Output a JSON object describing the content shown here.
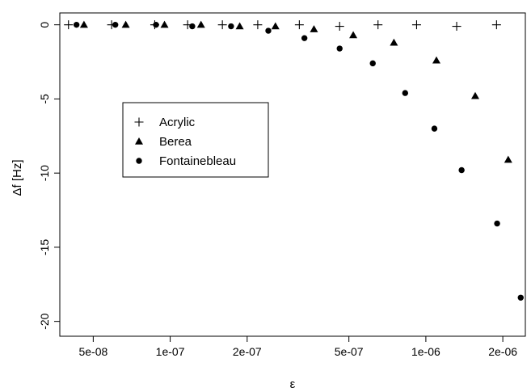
{
  "chart_data": {
    "type": "scatter",
    "title": "",
    "xlabel": "ε",
    "ylabel": "Δf [Hz]",
    "x_scale": "log",
    "xlim": [
      3.7e-08,
      2.45e-06
    ],
    "ylim": [
      -21,
      0.8
    ],
    "x_ticks": [
      {
        "value": 5e-08,
        "label": "5e-08"
      },
      {
        "value": 1e-07,
        "label": "1e-07"
      },
      {
        "value": 2e-07,
        "label": "2e-07"
      },
      {
        "value": 5e-07,
        "label": "5e-07"
      },
      {
        "value": 1e-06,
        "label": "1e-06"
      },
      {
        "value": 2e-06,
        "label": "2e-06"
      }
    ],
    "y_ticks": [
      {
        "value": 0,
        "label": "0"
      },
      {
        "value": -5,
        "label": "-5"
      },
      {
        "value": -10,
        "label": "-10"
      },
      {
        "value": -15,
        "label": "-15"
      },
      {
        "value": -20,
        "label": "-20"
      }
    ],
    "legend": {
      "placement": "middle-left",
      "entries": [
        {
          "label": "Acrylic",
          "symbol": "plus"
        },
        {
          "label": "Berea",
          "symbol": "triangle"
        },
        {
          "label": "Fontainebleau",
          "symbol": "circle"
        }
      ]
    },
    "series": [
      {
        "name": "Acrylic",
        "symbol": "plus",
        "points": [
          {
            "x": 4e-08,
            "y": 0
          },
          {
            "x": 5.9e-08,
            "y": 0
          },
          {
            "x": 8.7e-08,
            "y": 0
          },
          {
            "x": 1.17e-07,
            "y": 0
          },
          {
            "x": 1.6e-07,
            "y": 0
          },
          {
            "x": 2.2e-07,
            "y": 0
          },
          {
            "x": 3.2e-07,
            "y": 0
          },
          {
            "x": 4.6e-07,
            "y": -0.1
          },
          {
            "x": 6.5e-07,
            "y": 0
          },
          {
            "x": 9.2e-07,
            "y": 0
          },
          {
            "x": 1.32e-06,
            "y": -0.1
          },
          {
            "x": 1.89e-06,
            "y": 0
          }
        ]
      },
      {
        "name": "Berea",
        "symbol": "triangle",
        "points": [
          {
            "x": 4.6e-08,
            "y": 0
          },
          {
            "x": 6.7e-08,
            "y": 0
          },
          {
            "x": 9.5e-08,
            "y": 0
          },
          {
            "x": 1.32e-07,
            "y": 0
          },
          {
            "x": 1.87e-07,
            "y": -0.1
          },
          {
            "x": 2.58e-07,
            "y": -0.1
          },
          {
            "x": 3.65e-07,
            "y": -0.3
          },
          {
            "x": 5.2e-07,
            "y": -0.7
          },
          {
            "x": 7.5e-07,
            "y": -1.2
          },
          {
            "x": 1.1e-06,
            "y": -2.4
          },
          {
            "x": 1.56e-06,
            "y": -4.8
          },
          {
            "x": 2.1e-06,
            "y": -9.1
          }
        ]
      },
      {
        "name": "Fontainebleau",
        "symbol": "circle",
        "points": [
          {
            "x": 4.3e-08,
            "y": 0
          },
          {
            "x": 6.1e-08,
            "y": 0
          },
          {
            "x": 8.8e-08,
            "y": 0
          },
          {
            "x": 1.22e-07,
            "y": -0.1
          },
          {
            "x": 1.73e-07,
            "y": -0.1
          },
          {
            "x": 2.42e-07,
            "y": -0.4
          },
          {
            "x": 3.35e-07,
            "y": -0.9
          },
          {
            "x": 4.6e-07,
            "y": -1.6
          },
          {
            "x": 6.2e-07,
            "y": -2.6
          },
          {
            "x": 8.3e-07,
            "y": -4.6
          },
          {
            "x": 1.08e-06,
            "y": -7.0
          },
          {
            "x": 1.38e-06,
            "y": -9.8
          },
          {
            "x": 1.9e-06,
            "y": -13.4
          },
          {
            "x": 2.35e-06,
            "y": -18.4
          }
        ]
      }
    ]
  }
}
